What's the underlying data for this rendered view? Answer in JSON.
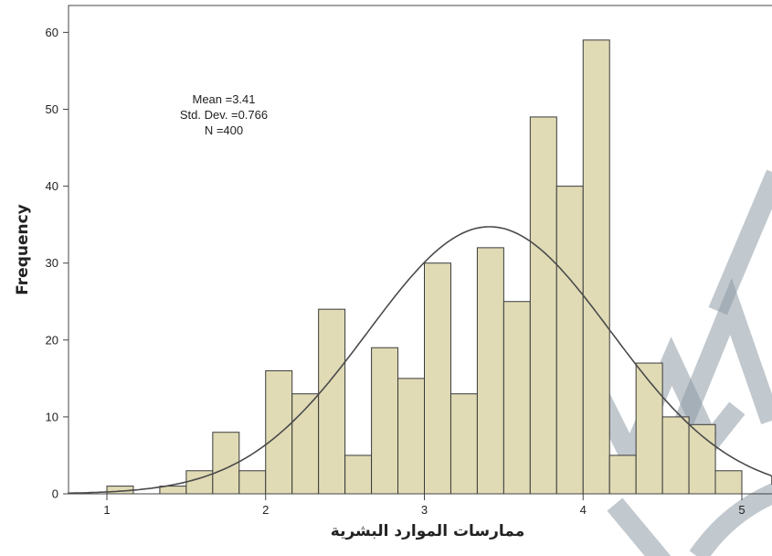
{
  "chart_data": {
    "type": "bar",
    "xlabel": "ممارسات الموارد البشرية",
    "ylabel": "Frequency",
    "xlim": [
      0.8,
      5.2
    ],
    "ylim": [
      0,
      64
    ],
    "x_ticks": [
      "1",
      "2",
      "3",
      "4",
      "5"
    ],
    "y_ticks": [
      "0",
      "10",
      "20",
      "30",
      "40",
      "50",
      "60"
    ],
    "bin_width": 0.1667,
    "bins": [
      {
        "start": 1.0,
        "value": 1
      },
      {
        "start": 1.1667,
        "value": 0
      },
      {
        "start": 1.3333,
        "value": 1
      },
      {
        "start": 1.5,
        "value": 3
      },
      {
        "start": 1.6667,
        "value": 8
      },
      {
        "start": 1.8333,
        "value": 3
      },
      {
        "start": 2.0,
        "value": 16
      },
      {
        "start": 2.1667,
        "value": 13
      },
      {
        "start": 2.3333,
        "value": 24
      },
      {
        "start": 2.5,
        "value": 5
      },
      {
        "start": 2.6667,
        "value": 19
      },
      {
        "start": 2.8333,
        "value": 15
      },
      {
        "start": 3.0,
        "value": 30
      },
      {
        "start": 3.1667,
        "value": 13
      },
      {
        "start": 3.3333,
        "value": 32
      },
      {
        "start": 3.5,
        "value": 25
      },
      {
        "start": 3.6667,
        "value": 49
      },
      {
        "start": 3.8333,
        "value": 40
      },
      {
        "start": 4.0,
        "value": 59
      },
      {
        "start": 4.1667,
        "value": 5
      },
      {
        "start": 4.3333,
        "value": 17
      },
      {
        "start": 4.5,
        "value": 10
      },
      {
        "start": 4.6667,
        "value": 9
      },
      {
        "start": 4.8333,
        "value": 3
      }
    ],
    "normal_curve": {
      "mean": 3.41,
      "sd": 0.766,
      "n": 400
    },
    "stats_text": [
      "Mean =3.41",
      "Std. Dev. =0.766",
      "N =400"
    ],
    "colors": {
      "bar_fill": "#e0dbb5",
      "bar_stroke": "#3a3a3a",
      "curve": "#4a4a4a",
      "watermark": "#8e9aa6"
    }
  }
}
